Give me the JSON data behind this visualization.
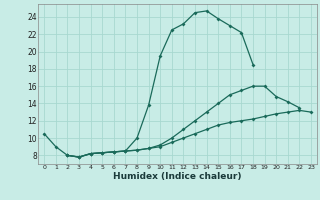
{
  "xlabel": "Humidex (Indice chaleur)",
  "background_color": "#c8ece6",
  "grid_color": "#a8d8d0",
  "line_color": "#1a6a5a",
  "xlim": [
    -0.5,
    23.5
  ],
  "ylim": [
    7.0,
    25.5
  ],
  "xticks": [
    0,
    1,
    2,
    3,
    4,
    5,
    6,
    7,
    8,
    9,
    10,
    11,
    12,
    13,
    14,
    15,
    16,
    17,
    18,
    19,
    20,
    21,
    22,
    23
  ],
  "yticks": [
    8,
    10,
    12,
    14,
    16,
    18,
    20,
    22,
    24
  ],
  "line1_x": [
    0,
    1,
    2,
    3,
    4,
    5,
    6,
    7,
    8,
    9,
    10,
    11,
    12,
    13,
    14,
    15,
    16,
    17,
    18
  ],
  "line1_y": [
    10.5,
    9.0,
    8.0,
    7.8,
    8.2,
    8.3,
    8.4,
    8.5,
    10.0,
    13.8,
    19.5,
    22.5,
    23.2,
    24.5,
    24.7,
    23.8,
    23.0,
    22.2,
    18.5
  ],
  "line2_x": [
    2,
    3,
    4,
    5,
    6,
    7,
    8,
    9,
    10,
    11,
    12,
    13,
    14,
    15,
    16,
    17,
    18,
    19,
    20,
    21,
    22
  ],
  "line2_y": [
    8.0,
    7.8,
    8.2,
    8.3,
    8.4,
    8.5,
    8.6,
    8.8,
    9.2,
    10.0,
    11.0,
    12.0,
    13.0,
    14.0,
    15.0,
    15.5,
    16.0,
    16.0,
    14.8,
    14.2,
    13.5
  ],
  "line3_x": [
    2,
    3,
    4,
    5,
    6,
    7,
    8,
    9,
    10,
    11,
    12,
    13,
    14,
    15,
    16,
    17,
    18,
    19,
    20,
    21,
    22,
    23
  ],
  "line3_y": [
    8.0,
    7.8,
    8.2,
    8.3,
    8.4,
    8.5,
    8.6,
    8.8,
    9.0,
    9.5,
    10.0,
    10.5,
    11.0,
    11.5,
    11.8,
    12.0,
    12.2,
    12.5,
    12.8,
    13.0,
    13.2,
    13.0
  ]
}
